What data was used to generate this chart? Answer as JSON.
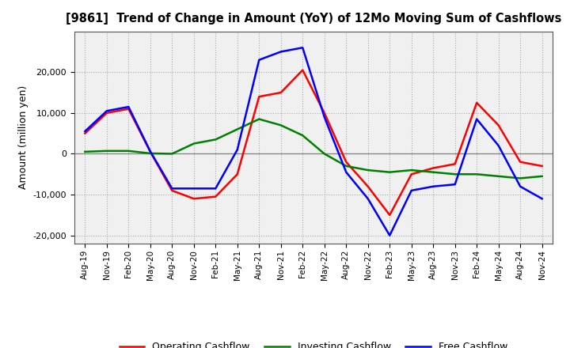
{
  "title": "[9861]  Trend of Change in Amount (YoY) of 12Mo Moving Sum of Cashflows",
  "ylabel": "Amount (million yen)",
  "xlabels": [
    "Aug-19",
    "Nov-19",
    "Feb-20",
    "May-20",
    "Aug-20",
    "Nov-20",
    "Feb-21",
    "May-21",
    "Aug-21",
    "Nov-21",
    "Feb-22",
    "May-22",
    "Aug-22",
    "Nov-22",
    "Feb-23",
    "May-23",
    "Aug-23",
    "Nov-23",
    "Feb-24",
    "May-24",
    "Aug-24",
    "Nov-24"
  ],
  "operating": [
    5000,
    10000,
    11000,
    500,
    -9000,
    -11000,
    -10500,
    -5000,
    14000,
    15000,
    20500,
    10000,
    -2000,
    -8000,
    -15000,
    -5000,
    -3500,
    -2500,
    12500,
    7000,
    -2000,
    -3000
  ],
  "investing": [
    500,
    700,
    700,
    100,
    0,
    2500,
    3500,
    6000,
    8500,
    7000,
    4500,
    0,
    -3000,
    -4000,
    -4500,
    -4000,
    -4500,
    -5000,
    -5000,
    -5500,
    -6000,
    -5500
  ],
  "free": [
    5500,
    10500,
    11500,
    600,
    -8500,
    -8500,
    -8500,
    1000,
    23000,
    25000,
    26000,
    9000,
    -4500,
    -11000,
    -20000,
    -9000,
    -8000,
    -7500,
    8500,
    2000,
    -8000,
    -11000
  ],
  "ylim": [
    -22000,
    30000
  ],
  "yticks": [
    -20000,
    -10000,
    0,
    10000,
    20000
  ],
  "operating_color": "#ff0000",
  "investing_color": "#008000",
  "free_color": "#0000ff",
  "bg_color": "#ffffff",
  "plot_bg_color": "#f0f0f0",
  "grid_color": "#aaaaaa",
  "zero_line_color": "#808080"
}
